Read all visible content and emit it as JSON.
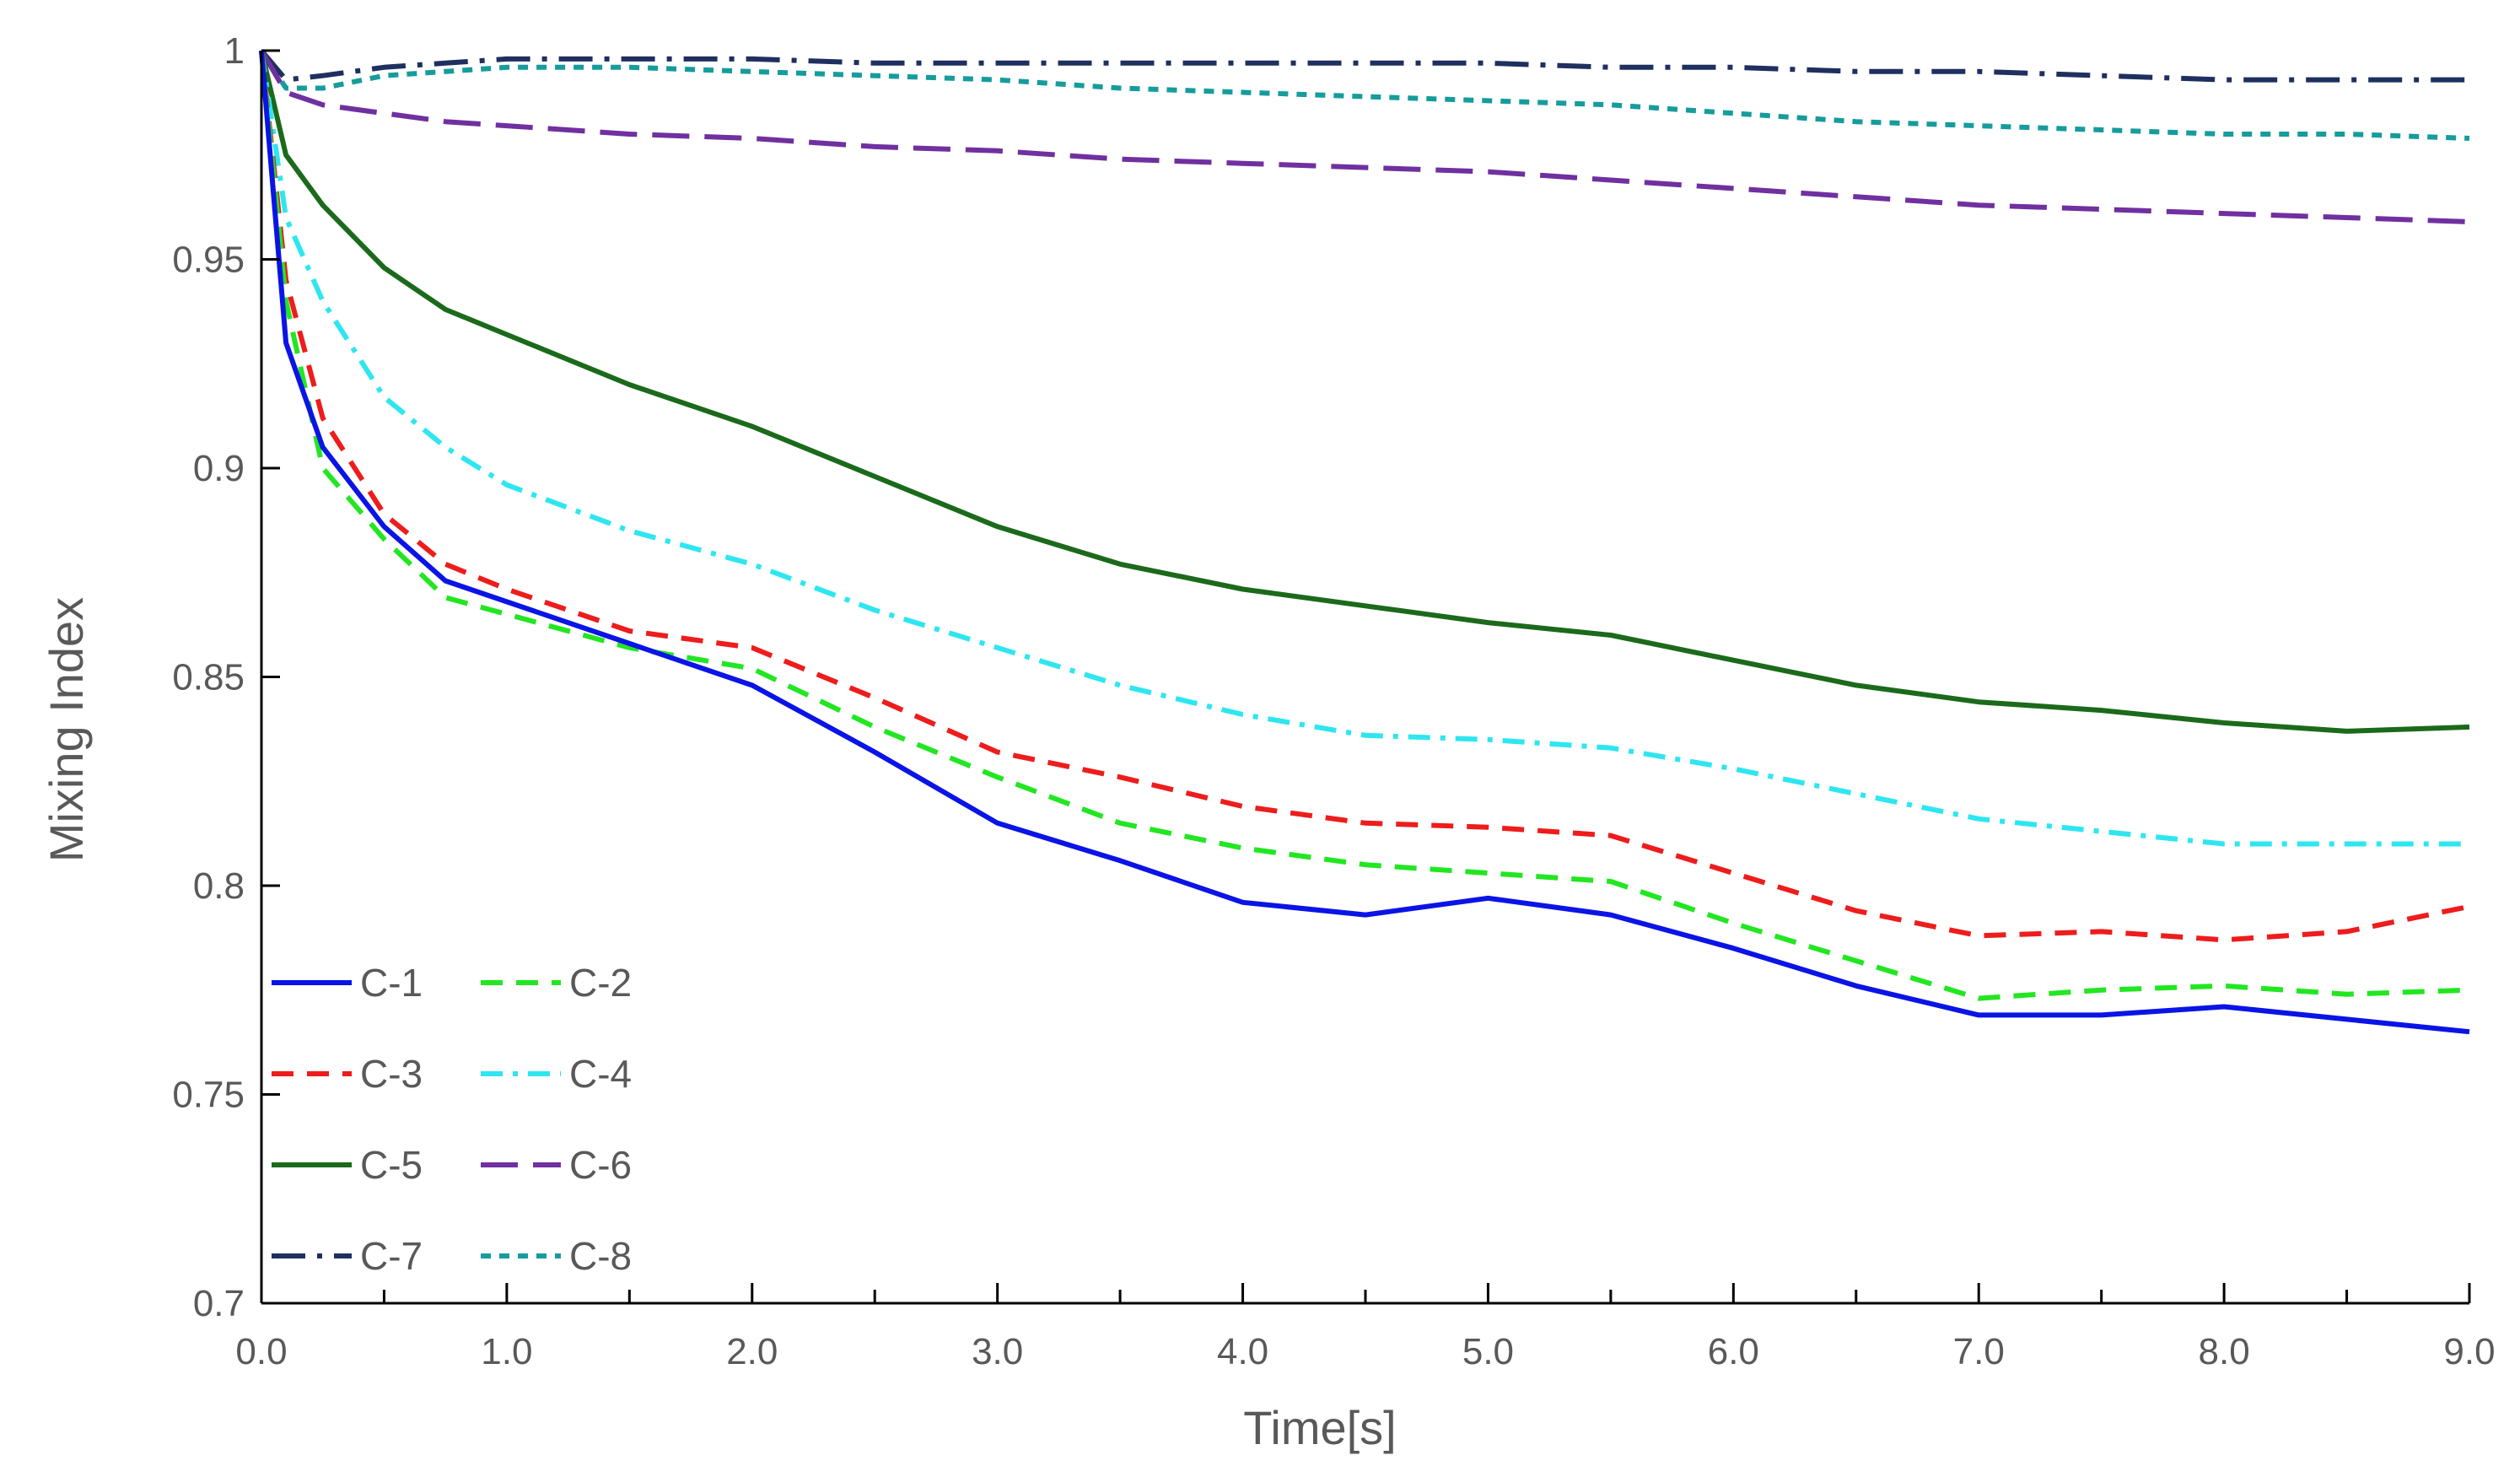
{
  "chart_data": {
    "type": "line",
    "title": "",
    "xlabel": "Time[s]",
    "ylabel": "Mixing Index",
    "xlim": [
      0,
      9
    ],
    "ylim": [
      0.7,
      1
    ],
    "grid": false,
    "legend_position": "bottom-left",
    "x_tick_labels": [
      "0.0",
      "1.0",
      "2.0",
      "3.0",
      "4.0",
      "5.0",
      "6.0",
      "7.0",
      "8.0",
      "9.0"
    ],
    "y_tick_labels": [
      "0.7",
      "0.75",
      "0.8",
      "0.85",
      "0.9",
      "0.95",
      "1"
    ],
    "x": [
      0,
      0.1,
      0.25,
      0.5,
      0.75,
      1.0,
      1.5,
      2.0,
      2.5,
      3.0,
      3.5,
      4.0,
      4.5,
      5.0,
      5.5,
      6.0,
      6.5,
      7.0,
      7.5,
      8.0,
      8.5,
      9.0
    ],
    "series": [
      {
        "name": "C-1",
        "color": "#0a14e6",
        "dash": "solid",
        "values": [
          1.0,
          0.93,
          0.905,
          0.886,
          0.873,
          0.868,
          0.858,
          0.848,
          0.832,
          0.815,
          0.806,
          0.796,
          0.793,
          0.797,
          0.793,
          0.785,
          0.776,
          0.769,
          0.769,
          0.771,
          0.768,
          0.765
        ]
      },
      {
        "name": "C-2",
        "color": "#22e622",
        "dash": "dash",
        "values": [
          1.0,
          0.94,
          0.9,
          0.883,
          0.869,
          0.865,
          0.857,
          0.852,
          0.838,
          0.826,
          0.815,
          0.809,
          0.805,
          0.803,
          0.801,
          0.791,
          0.782,
          0.773,
          0.775,
          0.776,
          0.774,
          0.775
        ]
      },
      {
        "name": "C-3",
        "color": "#ee1c1c",
        "dash": "dash",
        "values": [
          1.0,
          0.945,
          0.912,
          0.889,
          0.877,
          0.871,
          0.861,
          0.857,
          0.845,
          0.832,
          0.826,
          0.819,
          0.815,
          0.814,
          0.812,
          0.803,
          0.794,
          0.788,
          0.789,
          0.787,
          0.789,
          0.795
        ]
      },
      {
        "name": "C-4",
        "color": "#2ee6f0",
        "dash": "dashdot",
        "values": [
          1.0,
          0.96,
          0.94,
          0.917,
          0.905,
          0.896,
          0.885,
          0.877,
          0.866,
          0.857,
          0.848,
          0.841,
          0.836,
          0.835,
          0.833,
          0.828,
          0.822,
          0.816,
          0.813,
          0.81,
          0.81,
          0.81
        ]
      },
      {
        "name": "C-5",
        "color": "#1b6a1b",
        "dash": "solid",
        "values": [
          1.0,
          0.975,
          0.963,
          0.948,
          0.938,
          0.932,
          0.92,
          0.91,
          0.898,
          0.886,
          0.877,
          0.871,
          0.867,
          0.863,
          0.86,
          0.854,
          0.848,
          0.844,
          0.842,
          0.839,
          0.837,
          0.838
        ]
      },
      {
        "name": "C-6",
        "color": "#7030a0",
        "dash": "longdash",
        "values": [
          1.0,
          0.99,
          0.987,
          0.985,
          0.983,
          0.982,
          0.98,
          0.979,
          0.977,
          0.976,
          0.974,
          0.973,
          0.972,
          0.971,
          0.969,
          0.967,
          0.965,
          0.963,
          0.962,
          0.961,
          0.96,
          0.959
        ]
      },
      {
        "name": "C-7",
        "color": "#1f2f5f",
        "dash": "longdashdot",
        "values": [
          1.0,
          0.993,
          0.994,
          0.996,
          0.997,
          0.998,
          0.998,
          0.998,
          0.997,
          0.997,
          0.997,
          0.997,
          0.997,
          0.997,
          0.996,
          0.996,
          0.995,
          0.995,
          0.994,
          0.993,
          0.993,
          0.993
        ]
      },
      {
        "name": "C-8",
        "color": "#169c9c",
        "dash": "shortdash",
        "values": [
          1.0,
          0.991,
          0.991,
          0.994,
          0.995,
          0.996,
          0.996,
          0.995,
          0.994,
          0.993,
          0.991,
          0.99,
          0.989,
          0.988,
          0.987,
          0.985,
          0.983,
          0.982,
          0.981,
          0.98,
          0.98,
          0.979
        ]
      }
    ]
  }
}
